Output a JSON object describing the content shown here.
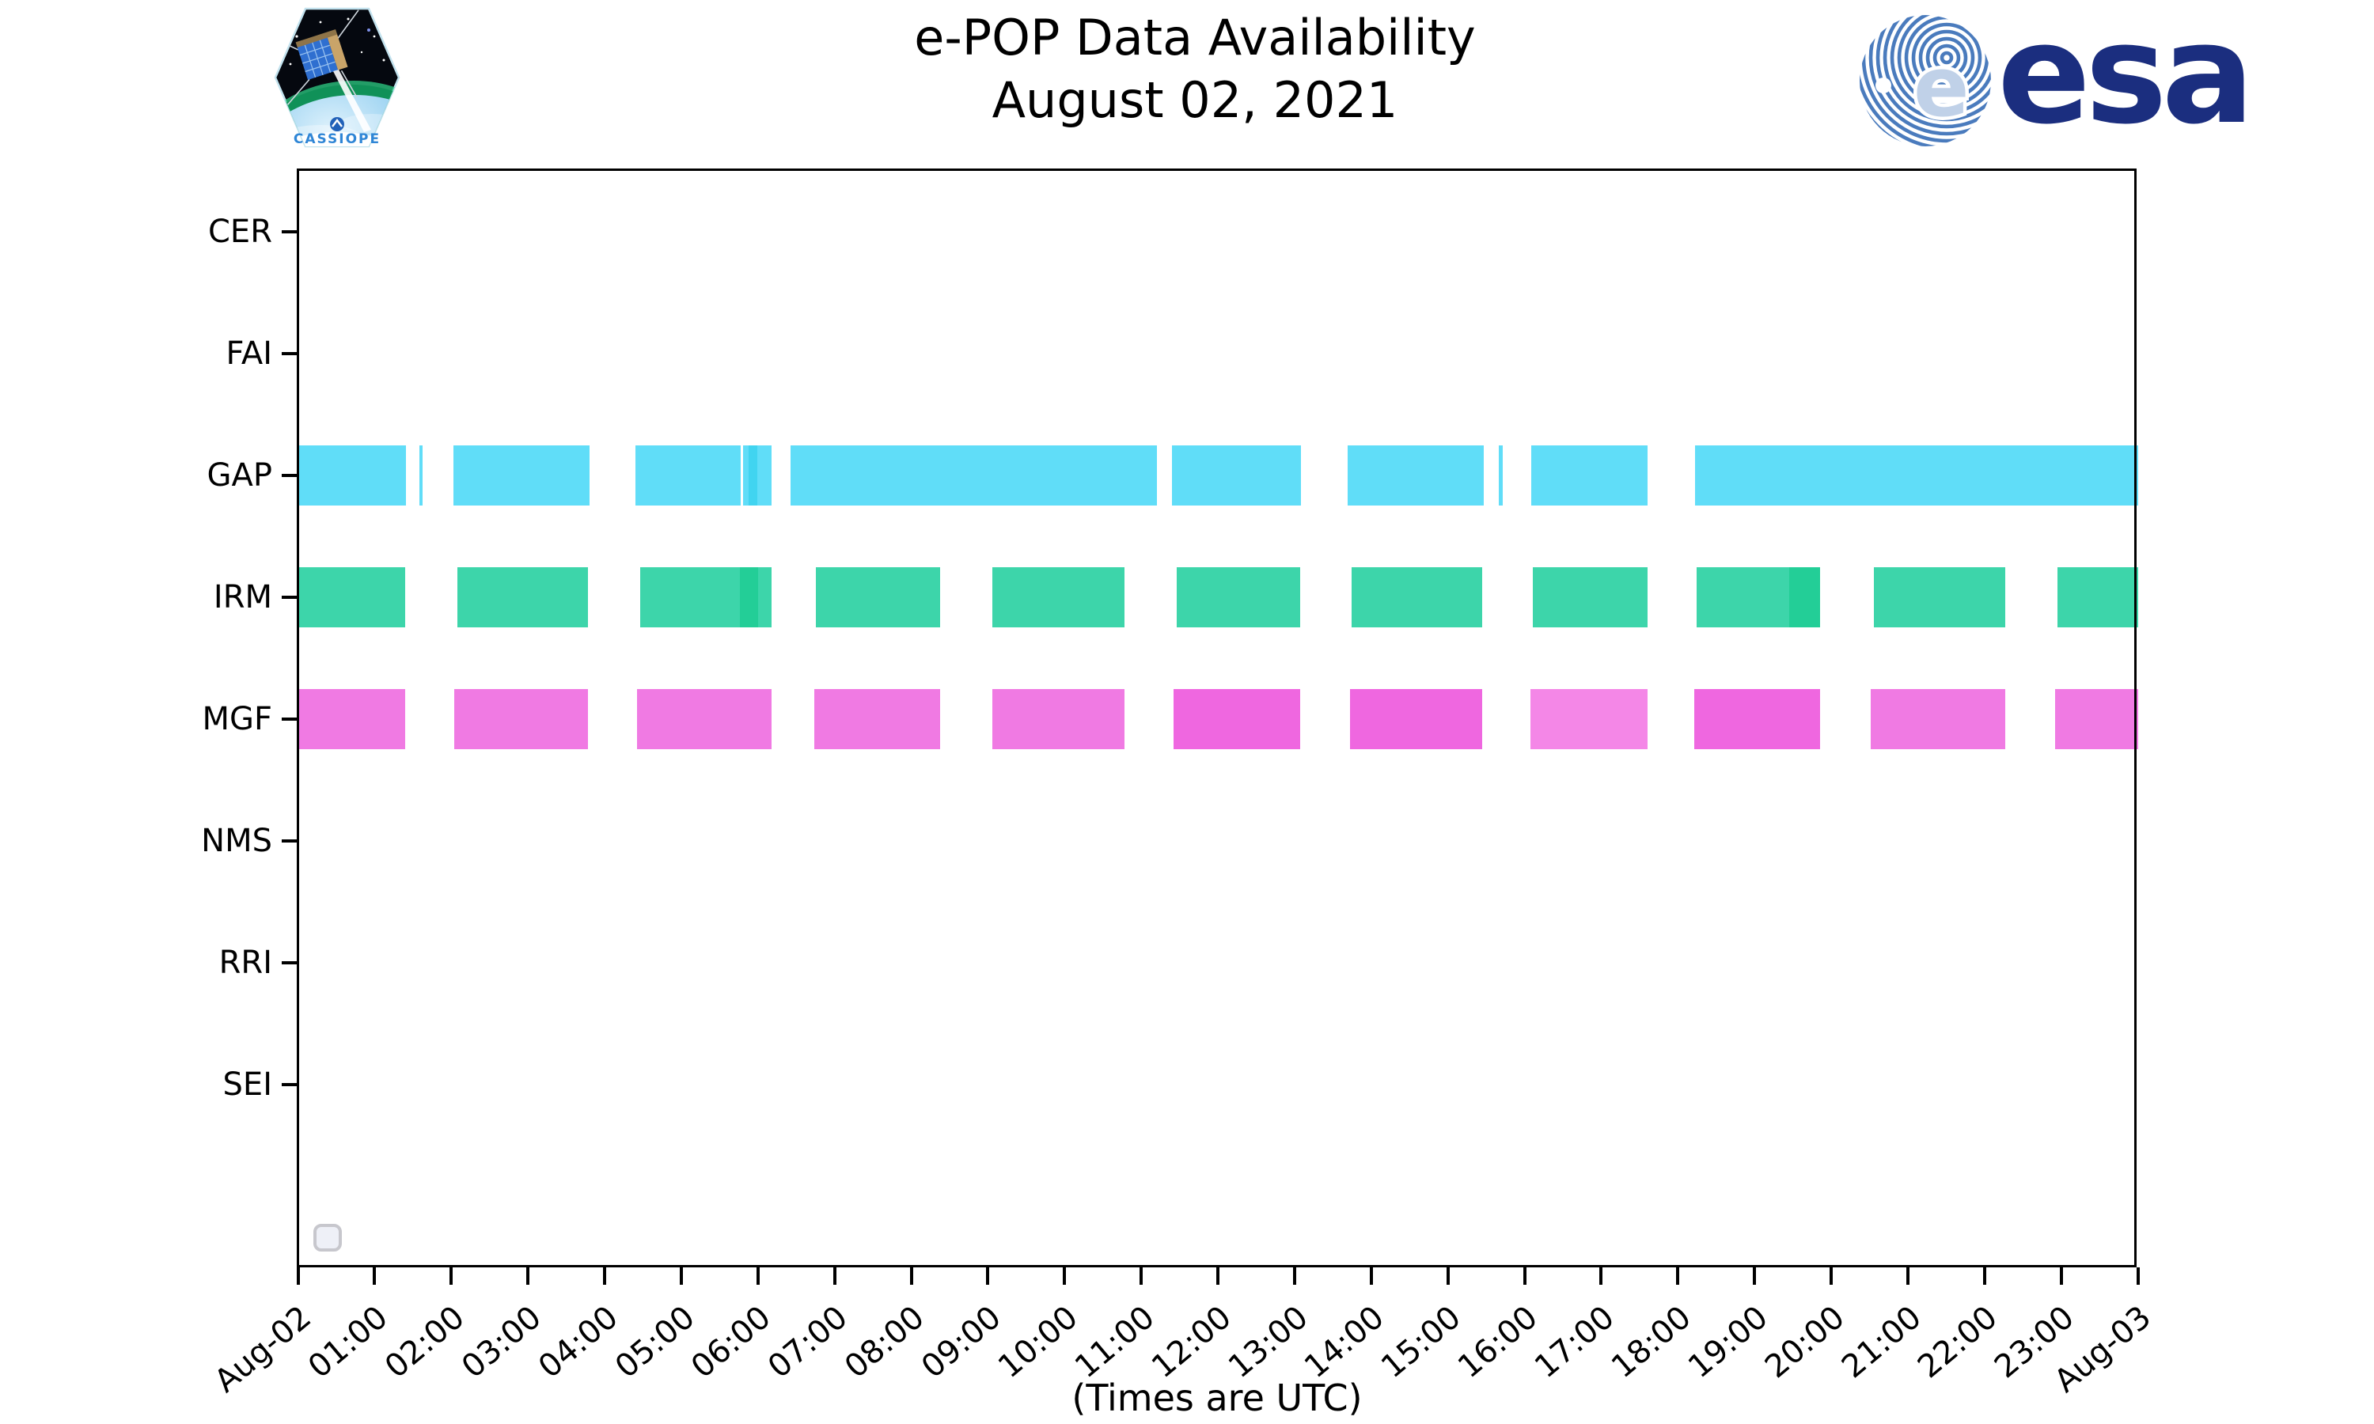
{
  "header": {
    "title_line1": "e-POP Data Availability",
    "title_line2": "August 02, 2021"
  },
  "branding": {
    "esa_wordmark": "esa",
    "patch_text": "CASSIOPE"
  },
  "footer": {
    "axis_note": "(Times are UTC)"
  },
  "chart_data": {
    "type": "bar",
    "variant": "horizontal-availability-timeline",
    "title": "e-POP Data Availability",
    "subtitle": "August 02, 2021",
    "xlabel": "(Times are UTC)",
    "x_axis": {
      "start": "Aug-02 00:00 UTC",
      "end": "Aug-03 00:00 UTC",
      "range_hours": [
        0,
        24
      ],
      "tick_labels": [
        "Aug-02",
        "01:00",
        "02:00",
        "03:00",
        "04:00",
        "05:00",
        "06:00",
        "07:00",
        "08:00",
        "09:00",
        "10:00",
        "11:00",
        "12:00",
        "13:00",
        "14:00",
        "15:00",
        "16:00",
        "17:00",
        "18:00",
        "19:00",
        "20:00",
        "21:00",
        "22:00",
        "23:00",
        "Aug-03"
      ]
    },
    "y_categories": [
      "CER",
      "FAI",
      "GAP",
      "IRM",
      "MGF",
      "NMS",
      "RRI",
      "SEI"
    ],
    "rows_with_no_data": [
      "CER",
      "FAI",
      "NMS",
      "RRI",
      "SEI"
    ],
    "grid": false,
    "legend": "empty stub box at lower-left",
    "colors": {
      "GAP": {
        "n": "#60ddf8",
        "d": "#41d4f0",
        "l": "#8ae7fa"
      },
      "IRM": {
        "n": "#3dd5aa",
        "d": "#23ce97",
        "l": "#5fdfba"
      },
      "MGF": {
        "n": "#f07ae3",
        "d": "#ef67e0",
        "l": "#f487e7"
      }
    },
    "series": [
      {
        "name": "GAP",
        "intervals": [
          [
            0.0,
            1.41,
            "n"
          ],
          [
            1.58,
            1.63,
            "n"
          ],
          [
            2.03,
            3.8,
            "n"
          ],
          [
            4.4,
            5.78,
            "n"
          ],
          [
            5.81,
            5.88,
            "n"
          ],
          [
            5.88,
            5.99,
            "d"
          ],
          [
            5.99,
            6.18,
            "n"
          ],
          [
            6.43,
            11.2,
            "n"
          ],
          [
            11.4,
            13.08,
            "n"
          ],
          [
            13.69,
            15.47,
            "n"
          ],
          [
            15.66,
            15.72,
            "n"
          ],
          [
            16.09,
            17.6,
            "n"
          ],
          [
            18.22,
            24.0,
            "n"
          ]
        ]
      },
      {
        "name": "IRM",
        "intervals": [
          [
            0.0,
            1.4,
            "n"
          ],
          [
            2.08,
            3.78,
            "n"
          ],
          [
            4.46,
            5.76,
            "n"
          ],
          [
            5.76,
            6.0,
            "d"
          ],
          [
            6.0,
            6.18,
            "n"
          ],
          [
            6.76,
            8.38,
            "n"
          ],
          [
            9.06,
            10.78,
            "n"
          ],
          [
            11.46,
            13.07,
            "n"
          ],
          [
            13.74,
            15.45,
            "n"
          ],
          [
            16.11,
            17.6,
            "n"
          ],
          [
            18.25,
            19.45,
            "n"
          ],
          [
            19.45,
            19.86,
            "d"
          ],
          [
            20.56,
            22.27,
            "n"
          ],
          [
            22.95,
            24.0,
            "n"
          ]
        ]
      },
      {
        "name": "MGF",
        "intervals": [
          [
            0.0,
            1.4,
            "n"
          ],
          [
            2.04,
            3.78,
            "n"
          ],
          [
            4.42,
            6.18,
            "n"
          ],
          [
            6.74,
            8.38,
            "n"
          ],
          [
            9.06,
            10.78,
            "n"
          ],
          [
            11.42,
            13.07,
            "d"
          ],
          [
            13.72,
            15.45,
            "d"
          ],
          [
            16.08,
            17.6,
            "l"
          ],
          [
            18.21,
            19.86,
            "d"
          ],
          [
            20.52,
            22.27,
            "n"
          ],
          [
            22.92,
            24.0,
            "n"
          ]
        ]
      }
    ]
  }
}
